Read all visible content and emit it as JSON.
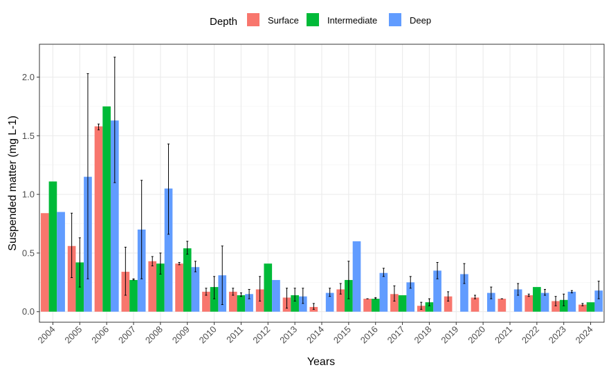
{
  "chart_data": {
    "type": "bar",
    "xlabel": "Years",
    "ylabel": "Suspended matter (mg L-1)",
    "ylim": [
      -0.09,
      2.28
    ],
    "yticks": [
      "0.0",
      "0.5",
      "1.0",
      "1.5",
      "2.0"
    ],
    "grid": true,
    "legend": {
      "title": "Depth",
      "placement": "top"
    },
    "categories": [
      "2004",
      "2005",
      "2006",
      "2007",
      "2008",
      "2009",
      "2010",
      "2011",
      "2012",
      "2013",
      "2014",
      "2015",
      "2016",
      "2017",
      "2018",
      "2019",
      "2020",
      "2021",
      "2022",
      "2023",
      "2024"
    ],
    "series": [
      {
        "name": "Surface",
        "color": "#F8766D",
        "values": [
          0.84,
          0.56,
          1.58,
          0.34,
          0.43,
          0.41,
          0.17,
          0.17,
          0.19,
          0.12,
          0.04,
          0.19,
          0.11,
          0.15,
          0.05,
          0.13,
          0.12,
          0.11,
          0.14,
          0.09,
          0.06
        ],
        "err": [
          null,
          [
            0.29,
            0.84
          ],
          [
            1.55,
            1.6
          ],
          [
            0.14,
            0.55
          ],
          [
            0.39,
            0.47
          ],
          [
            0.4,
            0.42
          ],
          [
            0.14,
            0.2
          ],
          [
            0.14,
            0.2
          ],
          [
            0.09,
            0.3
          ],
          [
            0.03,
            0.2
          ],
          [
            0.02,
            0.07
          ],
          [
            0.15,
            0.24
          ],
          [
            0.11,
            0.11
          ],
          [
            0.09,
            0.22
          ],
          [
            0.02,
            0.08
          ],
          [
            0.09,
            0.17
          ],
          [
            0.11,
            0.14
          ],
          [
            0.11,
            0.11
          ],
          [
            0.13,
            0.15
          ],
          [
            0.05,
            0.13
          ],
          [
            0.05,
            0.07
          ]
        ]
      },
      {
        "name": "Intermediate",
        "color": "#00BA38",
        "values": [
          1.11,
          0.42,
          1.75,
          0.27,
          0.41,
          0.54,
          0.21,
          0.14,
          0.41,
          0.14,
          null,
          0.27,
          0.11,
          0.14,
          0.08,
          null,
          null,
          null,
          0.21,
          0.1,
          0.08
        ],
        "err": [
          null,
          [
            0.21,
            0.63
          ],
          null,
          [
            0.27,
            0.28
          ],
          [
            0.32,
            0.5
          ],
          [
            0.49,
            0.6
          ],
          [
            0.11,
            0.3
          ],
          [
            0.13,
            0.16
          ],
          null,
          [
            0.09,
            0.2
          ],
          null,
          [
            0.11,
            0.43
          ],
          [
            0.11,
            0.12
          ],
          null,
          [
            0.05,
            0.11
          ],
          null,
          null,
          null,
          null,
          [
            0.05,
            0.15
          ],
          null
        ]
      },
      {
        "name": "Deep",
        "color": "#619CFF",
        "values": [
          0.85,
          1.15,
          1.63,
          0.7,
          1.05,
          0.38,
          0.31,
          0.15,
          0.27,
          0.13,
          0.16,
          0.6,
          0.33,
          0.25,
          0.35,
          0.32,
          0.16,
          0.19,
          0.16,
          0.17,
          0.18
        ],
        "err": [
          null,
          [
            0.28,
            2.03
          ],
          [
            1.1,
            2.17
          ],
          [
            0.28,
            1.12
          ],
          [
            0.66,
            1.43
          ],
          [
            0.34,
            0.43
          ],
          [
            0.06,
            0.56
          ],
          [
            0.11,
            0.19
          ],
          null,
          [
            0.07,
            0.2
          ],
          [
            0.13,
            0.2
          ],
          null,
          [
            0.3,
            0.37
          ],
          [
            0.2,
            0.3
          ],
          [
            0.28,
            0.42
          ],
          [
            0.24,
            0.41
          ],
          [
            0.11,
            0.21
          ],
          [
            0.14,
            0.24
          ],
          [
            0.14,
            0.19
          ],
          [
            0.16,
            0.18
          ],
          [
            0.11,
            0.26
          ]
        ]
      }
    ]
  }
}
